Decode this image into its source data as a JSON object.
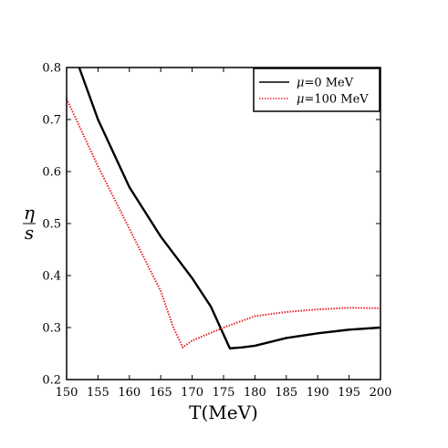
{
  "chart_data": {
    "type": "line",
    "title": "",
    "xlabel": "T(MeV)",
    "ylabel_numerator": "η",
    "ylabel_denominator": "s",
    "xlim": [
      150,
      200
    ],
    "ylim": [
      0.2,
      0.8
    ],
    "x_ticks": [
      150,
      155,
      160,
      165,
      170,
      175,
      180,
      185,
      190,
      195,
      200
    ],
    "y_ticks": [
      0.2,
      0.3,
      0.4,
      0.5,
      0.6,
      0.7,
      0.8
    ],
    "x_tick_labels": [
      "150",
      "155",
      "160",
      "165",
      "170",
      "175",
      "180",
      "185",
      "190",
      "195",
      "200"
    ],
    "y_tick_labels": [
      "0.2",
      "0.3",
      "0.4",
      "0.5",
      "0.6",
      "0.7",
      "0.8"
    ],
    "grid": false,
    "legend_position": "top-right",
    "series": [
      {
        "name": "μ=0 MeV",
        "legend_symbol": "μ",
        "legend_text": "=0 MeV",
        "color": "#000000",
        "style": "solid",
        "x": [
          152,
          155,
          160,
          165,
          170,
          173,
          176,
          178,
          180,
          185,
          190,
          195,
          200
        ],
        "y": [
          0.8,
          0.7,
          0.57,
          0.475,
          0.395,
          0.34,
          0.26,
          0.262,
          0.265,
          0.28,
          0.289,
          0.296,
          0.3
        ]
      },
      {
        "name": "μ=100 MeV",
        "legend_symbol": "μ",
        "legend_text": "=100 MeV",
        "color": "#e8202a",
        "style": "dotted",
        "x": [
          150,
          155,
          160,
          165,
          167,
          168.5,
          170,
          175,
          180,
          185,
          190,
          195,
          200
        ],
        "y": [
          0.74,
          0.61,
          0.49,
          0.37,
          0.3,
          0.262,
          0.275,
          0.3,
          0.322,
          0.33,
          0.335,
          0.338,
          0.337
        ]
      }
    ]
  }
}
